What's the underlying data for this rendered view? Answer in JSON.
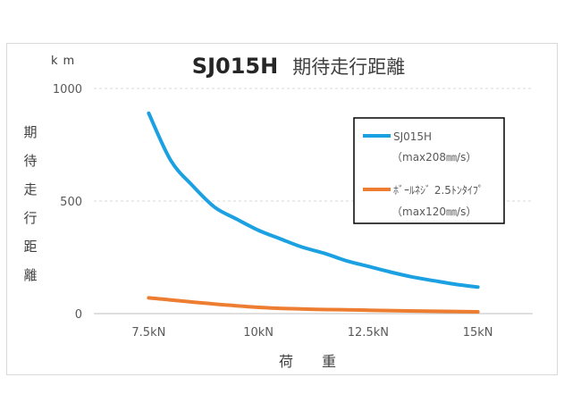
{
  "chart_data": {
    "type": "line",
    "title": "SJ015H",
    "title_suffix": "期待走行距離",
    "unit": "km",
    "ylabel_chars": [
      "期",
      "待",
      "走",
      "行",
      "距",
      "離"
    ],
    "xlabel": "荷　　重",
    "categories": [
      "7.5kN",
      "10kN",
      "12.5kN",
      "15kN"
    ],
    "ylim": [
      0,
      1000
    ],
    "yticks": [
      "0",
      "500",
      "1000"
    ],
    "ytick_values": [
      0,
      500,
      1000
    ],
    "grid": "horizontal dashed",
    "legend_position": "top-right",
    "series": [
      {
        "name": "SJ015H",
        "note": "（max208㎜/s）",
        "color": "#1ba1e2",
        "x": [
          7.5,
          8,
          8.5,
          9,
          9.5,
          10,
          10.5,
          11,
          11.5,
          12,
          12.5,
          13,
          13.5,
          14,
          14.5,
          15
        ],
        "values": [
          890,
          681,
          568,
          473,
          420,
          370,
          332,
          295,
          268,
          235,
          210,
          185,
          163,
          146,
          130,
          118
        ]
      },
      {
        "name": "ﾎﾞｰﾙﾈｼﾞ 2.5ﾄﾝﾀｲﾌﾟ",
        "note": "（max120㎜/s）",
        "color": "#ed7d31",
        "x": [
          7.5,
          10,
          12.5,
          15
        ],
        "values": [
          70,
          28,
          15,
          8
        ]
      }
    ]
  }
}
